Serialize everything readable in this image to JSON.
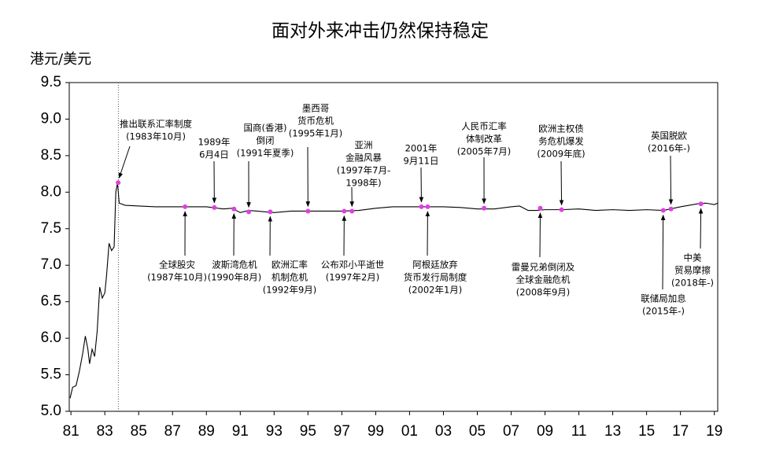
{
  "chart_data": {
    "type": "line",
    "title": "面对外来冲击仍然保持稳定",
    "y_label": "港元/美元",
    "xlim": [
      1980.9,
      2019.2
    ],
    "xticks": [
      {
        "value": 1981,
        "label": "81"
      },
      {
        "value": 1983,
        "label": "83"
      },
      {
        "value": 1985,
        "label": "85"
      },
      {
        "value": 1987,
        "label": "87"
      },
      {
        "value": 1989,
        "label": "89"
      },
      {
        "value": 1991,
        "label": "91"
      },
      {
        "value": 1993,
        "label": "93"
      },
      {
        "value": 1995,
        "label": "95"
      },
      {
        "value": 1997,
        "label": "97"
      },
      {
        "value": 1999,
        "label": "99"
      },
      {
        "value": 2001,
        "label": "01"
      },
      {
        "value": 2003,
        "label": "03"
      },
      {
        "value": 2005,
        "label": "05"
      },
      {
        "value": 2007,
        "label": "07"
      },
      {
        "value": 2009,
        "label": "09"
      },
      {
        "value": 2011,
        "label": "11"
      },
      {
        "value": 2013,
        "label": "13"
      },
      {
        "value": 2015,
        "label": "15"
      },
      {
        "value": 2017,
        "label": "17"
      },
      {
        "value": 2019,
        "label": "19"
      }
    ],
    "ylim": [
      5.0,
      9.5
    ],
    "yticks": [
      {
        "value": 5,
        "label": "5.0"
      },
      5.5,
      {
        "value": 6,
        "label": "6.0"
      },
      6.5,
      {
        "value": 7,
        "label": "7.0"
      },
      7.5,
      {
        "value": 8,
        "label": "8.0"
      },
      8.5,
      {
        "value": 9,
        "label": "9.0"
      },
      9.5
    ],
    "grid": false,
    "vline": 1983.8,
    "series": [
      {
        "color": "#000000",
        "x": [
          1980.95,
          1981.1,
          1981.3,
          1981.5,
          1981.7,
          1981.85,
          1982.0,
          1982.1,
          1982.25,
          1982.4,
          1982.55,
          1982.7,
          1982.85,
          1983.0,
          1983.1,
          1983.25,
          1983.4,
          1983.55,
          1983.65,
          1983.75,
          1983.85,
          1984.2,
          1985,
          1986,
          1987,
          1988,
          1989,
          1990,
          1990.5,
          1991,
          1991.5,
          1992,
          1992.5,
          1993,
          1994,
          1995,
          1996,
          1997,
          1998,
          1999,
          2000,
          2001,
          2002,
          2003,
          2004,
          2005,
          2006,
          2007,
          2007.5,
          2008,
          2008.5,
          2009,
          2010,
          2011,
          2012,
          2013,
          2014,
          2015,
          2016,
          2017,
          2018,
          2018.5,
          2019,
          2019.2
        ],
        "values": [
          5.18,
          5.33,
          5.35,
          5.55,
          5.8,
          6.03,
          5.85,
          5.65,
          5.85,
          5.75,
          6.1,
          6.7,
          6.55,
          6.62,
          6.85,
          7.3,
          7.2,
          7.25,
          8.0,
          8.13,
          7.85,
          7.82,
          7.81,
          7.8,
          7.8,
          7.8,
          7.8,
          7.77,
          7.78,
          7.72,
          7.75,
          7.74,
          7.73,
          7.72,
          7.74,
          7.74,
          7.74,
          7.74,
          7.75,
          7.78,
          7.8,
          7.8,
          7.8,
          7.8,
          7.79,
          7.77,
          7.77,
          7.8,
          7.81,
          7.75,
          7.75,
          7.76,
          7.76,
          7.77,
          7.75,
          7.76,
          7.75,
          7.76,
          7.75,
          7.8,
          7.84,
          7.85,
          7.83,
          7.85
        ]
      }
    ],
    "marker_color": "#e040e0",
    "events": [
      {
        "lines": [
          "推出联系汇率制度",
          "(1983年10月)"
        ],
        "x": 1983.79,
        "y": 8.13
      },
      {
        "lines": [
          "1989年",
          "6月4日"
        ],
        "x": 1989.47,
        "y": 7.79
      },
      {
        "lines": [
          "国商(香港)",
          "倒闭",
          "(1991年夏季)"
        ],
        "x": 1991.5,
        "y": 7.73
      },
      {
        "lines": [
          "墨西哥",
          "货币危机",
          "(1995年1月)"
        ],
        "x": 1995.0,
        "y": 7.74
      },
      {
        "lines": [
          "亚洲",
          "金融风暴",
          "(1997年7月-",
          "1998年)"
        ],
        "x": 1997.6,
        "y": 7.74
      },
      {
        "lines": [
          "2001年",
          "9月11日"
        ],
        "x": 2001.7,
        "y": 7.8
      },
      {
        "lines": [
          "人民币汇率",
          "体制改革",
          "(2005年7月)"
        ],
        "x": 2005.4,
        "y": 7.78
      },
      {
        "lines": [
          "欧洲主权债",
          "务危机爆发",
          "(2009年底)"
        ],
        "x": 2009.98,
        "y": 7.76
      },
      {
        "lines": [
          "英国脱欧",
          "(2016年-)"
        ],
        "x": 2016.44,
        "y": 7.77
      },
      {
        "lines": [
          "全球股灾",
          "(1987年10月)"
        ],
        "x": 1987.74,
        "y": 7.8
      },
      {
        "lines": [
          "波斯湾危机",
          "(1990年8月)"
        ],
        "x": 1990.63,
        "y": 7.77
      },
      {
        "lines": [
          "欧洲汇率",
          "机制危机",
          "(1992年9月)"
        ],
        "x": 1992.77,
        "y": 7.73
      },
      {
        "lines": [
          "公布邓小平逝世",
          "(1997年2月)"
        ],
        "x": 1997.14,
        "y": 7.74
      },
      {
        "lines": [
          "阿根廷放弃",
          "货币发行局制度",
          "(2002年1月)"
        ],
        "x": 2002.07,
        "y": 7.8
      },
      {
        "lines": [
          "雷曼兄弟倒闭及",
          "全球金融危机",
          "(2008年9月)"
        ],
        "x": 2008.72,
        "y": 7.78
      },
      {
        "lines": [
          "联储局加息",
          "(2015年-)"
        ],
        "x": 2015.98,
        "y": 7.75
      },
      {
        "lines": [
          "中美",
          "贸易摩擦",
          "(2018年-)"
        ],
        "x": 2018.21,
        "y": 7.84
      }
    ]
  }
}
